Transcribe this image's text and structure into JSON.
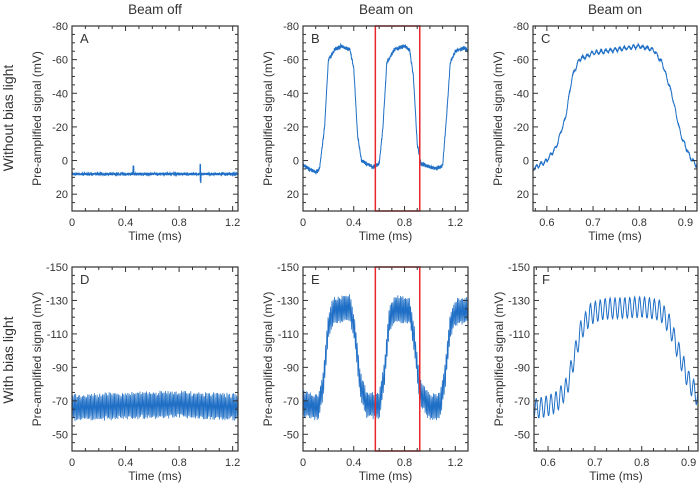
{
  "column_titles": [
    "Beam off",
    "Beam on",
    "Beam on"
  ],
  "row_labels": [
    "Without bias light",
    "With bias light"
  ],
  "colors": {
    "trace": "#1f6fc6",
    "highlight": "#e8252a",
    "axis": "#333333"
  },
  "chart_data": [
    {
      "panel": "A",
      "type": "line",
      "xlabel": "Time (ms)",
      "ylabel": "Pre-amplified signal (mV)",
      "xlim": [
        0,
        1.24
      ],
      "ylim": [
        -80,
        30
      ],
      "y_inverted": true,
      "xticks": [
        0,
        0.4,
        0.8,
        1.2
      ],
      "xtick_labels": [
        "0",
        "0.4",
        "0.8",
        "1.2"
      ],
      "yticks": [
        -80,
        -60,
        -40,
        -20,
        0,
        20
      ],
      "ytick_labels": [
        "-80",
        "-60",
        "-40",
        "-20",
        "0",
        "20"
      ],
      "envelope": [
        [
          0,
          8
        ],
        [
          1.24,
          8
        ]
      ],
      "ripple_amplitude": 0,
      "ripple_period": 0.01,
      "noise": 0.8
    },
    {
      "panel": "B",
      "type": "line",
      "xlabel": "Time (ms)",
      "ylabel": "Pre-amplified signal (mV)",
      "xlim": [
        0,
        1.3
      ],
      "ylim": [
        -80,
        30
      ],
      "y_inverted": true,
      "xticks": [
        0,
        0.4,
        0.8,
        1.2
      ],
      "xtick_labels": [
        "0",
        "0.4",
        "0.8",
        "1.2"
      ],
      "yticks": [
        -80,
        -60,
        -40,
        -20,
        0,
        20
      ],
      "ytick_labels": [
        "-80",
        "-60",
        "-40",
        "-20",
        "0",
        "20"
      ],
      "highlight_range": [
        0.57,
        0.92
      ],
      "envelope": [
        [
          0,
          3
        ],
        [
          0.1,
          7
        ],
        [
          0.13,
          5
        ],
        [
          0.17,
          -20
        ],
        [
          0.2,
          -60
        ],
        [
          0.25,
          -66
        ],
        [
          0.3,
          -68
        ],
        [
          0.37,
          -66
        ],
        [
          0.4,
          -55
        ],
        [
          0.43,
          -15
        ],
        [
          0.46,
          0
        ],
        [
          0.55,
          4
        ],
        [
          0.6,
          2
        ],
        [
          0.63,
          -20
        ],
        [
          0.66,
          -58
        ],
        [
          0.72,
          -66
        ],
        [
          0.8,
          -68
        ],
        [
          0.84,
          -66
        ],
        [
          0.87,
          -50
        ],
        [
          0.9,
          -10
        ],
        [
          0.93,
          2
        ],
        [
          1.05,
          5
        ],
        [
          1.1,
          3
        ],
        [
          1.13,
          -25
        ],
        [
          1.16,
          -58
        ],
        [
          1.2,
          -65
        ],
        [
          1.27,
          -67
        ],
        [
          1.3,
          -65
        ]
      ],
      "ripple_amplitude": 0.5,
      "ripple_period": 0.01,
      "noise": 0.8
    },
    {
      "panel": "C",
      "type": "line",
      "xlabel": "Time (ms)",
      "ylabel": "Pre-amplified signal (mV)",
      "xlim": [
        0.57,
        0.925
      ],
      "ylim": [
        -80,
        30
      ],
      "y_inverted": true,
      "xticks": [
        0.6,
        0.7,
        0.8,
        0.9
      ],
      "xtick_labels": [
        "0.6",
        "0.7",
        "0.8",
        "0.9"
      ],
      "yticks": [
        -80,
        -60,
        -40,
        -20,
        0,
        20
      ],
      "ytick_labels": [
        "-80",
        "-60",
        "-40",
        "-20",
        "0",
        "20"
      ],
      "envelope": [
        [
          0.57,
          5
        ],
        [
          0.6,
          0
        ],
        [
          0.62,
          -8
        ],
        [
          0.64,
          -25
        ],
        [
          0.655,
          -50
        ],
        [
          0.67,
          -60
        ],
        [
          0.7,
          -64
        ],
        [
          0.75,
          -66
        ],
        [
          0.8,
          -68
        ],
        [
          0.83,
          -66
        ],
        [
          0.85,
          -58
        ],
        [
          0.87,
          -40
        ],
        [
          0.89,
          -15
        ],
        [
          0.91,
          -2
        ],
        [
          0.925,
          3
        ]
      ],
      "ripple_amplitude": 1,
      "ripple_period": 0.01,
      "noise": 0.6
    },
    {
      "panel": "D",
      "type": "line",
      "xlabel": "Time (ms)",
      "ylabel": "Pre-amplified signal (mV)",
      "xlim": [
        0,
        1.24
      ],
      "ylim": [
        -150,
        -40
      ],
      "y_inverted": true,
      "xticks": [
        0,
        0.4,
        0.8,
        1.2
      ],
      "xtick_labels": [
        "0",
        "0.4",
        "0.8",
        "1.2"
      ],
      "yticks": [
        -150,
        -130,
        -110,
        -90,
        -70,
        -50
      ],
      "ytick_labels": [
        "-150",
        "-130",
        "-110",
        "-90",
        "-70",
        "-50"
      ],
      "envelope": [
        [
          0,
          -66
        ],
        [
          0.8,
          -68
        ],
        [
          1.24,
          -66
        ]
      ],
      "ripple_amplitude": 7,
      "ripple_period": 0.01,
      "noise": 1.5
    },
    {
      "panel": "E",
      "type": "line",
      "xlabel": "Time (ms)",
      "ylabel": "Pre-amplified signal  (mV)",
      "xlim": [
        0,
        1.3
      ],
      "ylim": [
        -150,
        -40
      ],
      "y_inverted": true,
      "xticks": [
        0,
        0.4,
        0.8,
        1.2
      ],
      "xtick_labels": [
        "0",
        "0.4",
        "0.8",
        "1.2"
      ],
      "yticks": [
        -150,
        -130,
        -110,
        -90,
        -70,
        -50
      ],
      "ytick_labels": [
        "-150",
        "-130",
        "-110",
        "-90",
        "-70",
        "-50"
      ],
      "highlight_range": [
        0.57,
        0.92
      ],
      "envelope": [
        [
          0,
          -68
        ],
        [
          0.12,
          -66
        ],
        [
          0.16,
          -80
        ],
        [
          0.2,
          -115
        ],
        [
          0.24,
          -124
        ],
        [
          0.37,
          -126
        ],
        [
          0.41,
          -110
        ],
        [
          0.45,
          -80
        ],
        [
          0.5,
          -68
        ],
        [
          0.6,
          -67
        ],
        [
          0.64,
          -85
        ],
        [
          0.68,
          -118
        ],
        [
          0.72,
          -125
        ],
        [
          0.84,
          -124
        ],
        [
          0.88,
          -105
        ],
        [
          0.92,
          -75
        ],
        [
          1.0,
          -66
        ],
        [
          1.08,
          -67
        ],
        [
          1.12,
          -85
        ],
        [
          1.16,
          -115
        ],
        [
          1.2,
          -123
        ],
        [
          1.3,
          -124
        ]
      ],
      "ripple_amplitude": 7,
      "ripple_period": 0.01,
      "noise": 1.5
    },
    {
      "panel": "F",
      "type": "line",
      "xlabel": "Time (ms)",
      "ylabel": "Pre-amplified signal  (mV)",
      "xlim": [
        0.57,
        0.92
      ],
      "ylim": [
        -150,
        -40
      ],
      "y_inverted": true,
      "xticks": [
        0.6,
        0.7,
        0.8,
        0.9
      ],
      "xtick_labels": [
        "0.6",
        "0.7",
        "0.8",
        "0.9"
      ],
      "yticks": [
        -150,
        -130,
        -110,
        -90,
        -70,
        -50
      ],
      "ytick_labels": [
        "-150",
        "-130",
        "-110",
        "-90",
        "-70",
        "-50"
      ],
      "envelope": [
        [
          0.57,
          -65
        ],
        [
          0.6,
          -67
        ],
        [
          0.62,
          -70
        ],
        [
          0.64,
          -78
        ],
        [
          0.655,
          -95
        ],
        [
          0.67,
          -112
        ],
        [
          0.69,
          -122
        ],
        [
          0.72,
          -125
        ],
        [
          0.8,
          -126
        ],
        [
          0.84,
          -124
        ],
        [
          0.86,
          -115
        ],
        [
          0.88,
          -98
        ],
        [
          0.9,
          -82
        ],
        [
          0.92,
          -72
        ]
      ],
      "ripple_amplitude": 6,
      "ripple_period": 0.0105,
      "noise": 0.3
    }
  ]
}
